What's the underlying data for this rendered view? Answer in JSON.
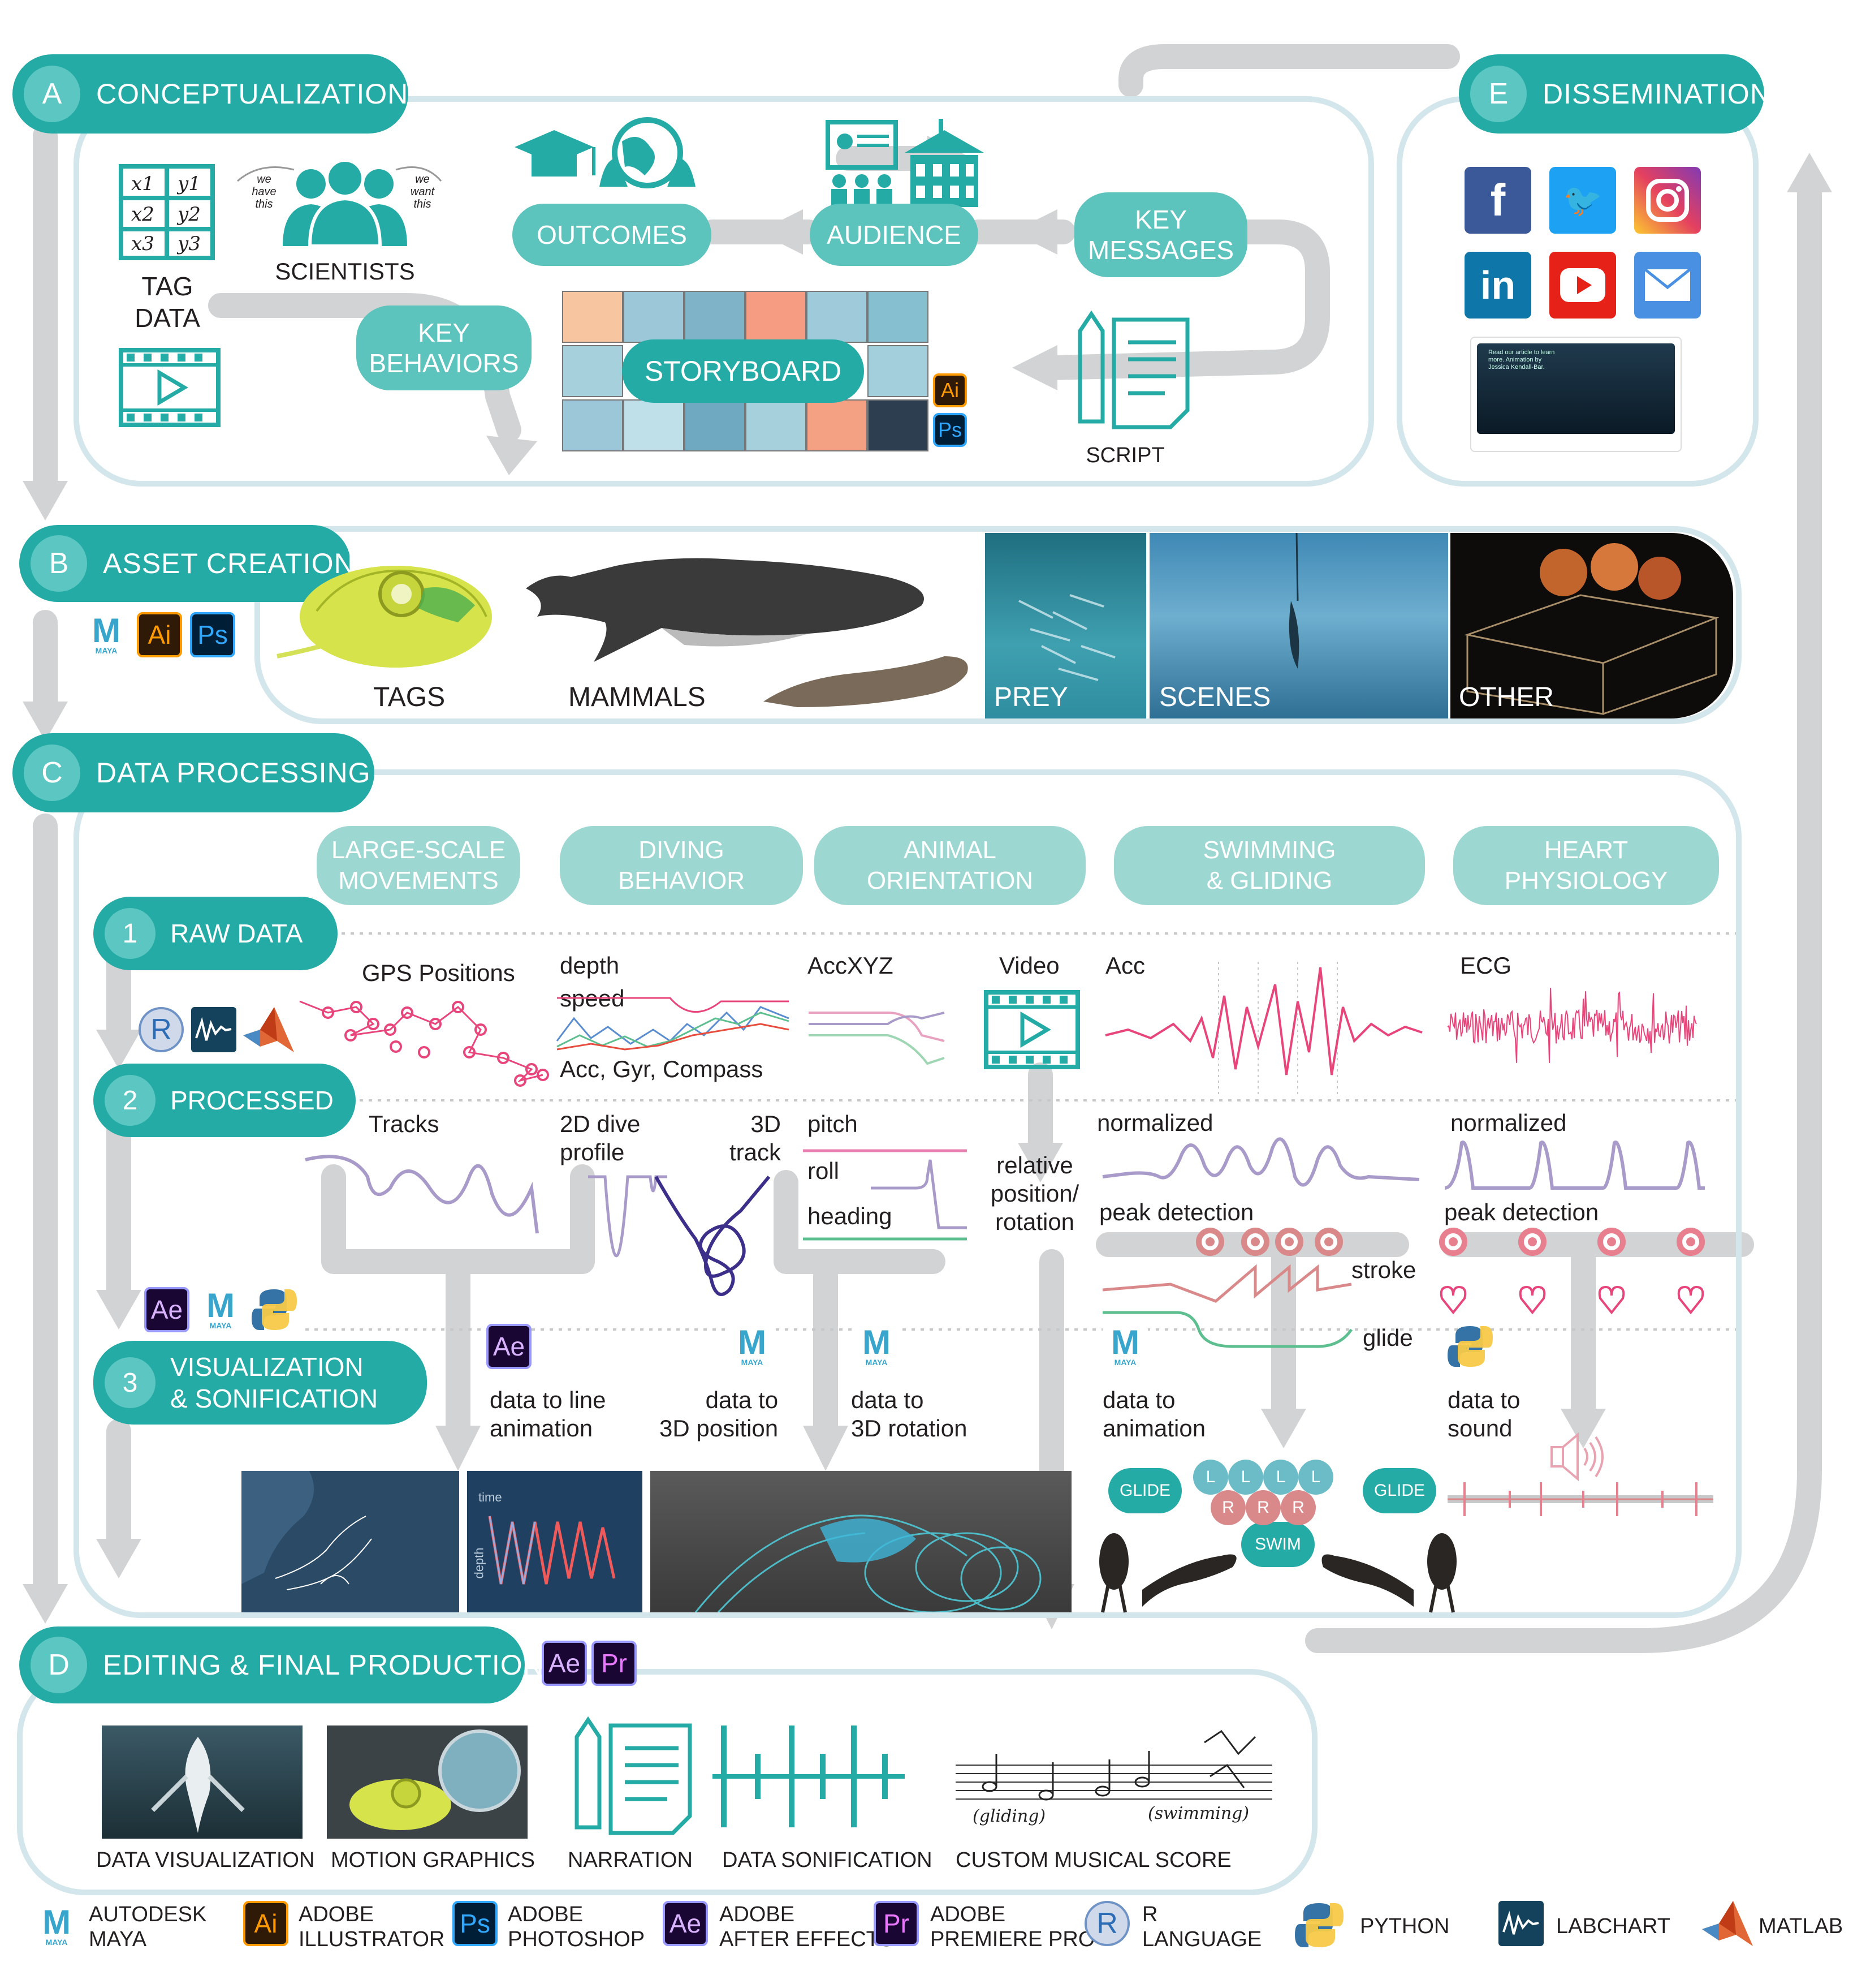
{
  "sections": {
    "a": {
      "letter": "A",
      "title": "CONCEPTUALIZATION"
    },
    "b": {
      "letter": "B",
      "title": "ASSET CREATION"
    },
    "c": {
      "letter": "C",
      "title": "DATA PROCESSING"
    },
    "d": {
      "letter": "D",
      "title": "EDITING & FINAL PRODUCTION"
    },
    "e": {
      "letter": "E",
      "title": "DISSEMINATION"
    }
  },
  "concept": {
    "tag_data": "TAG\nDATA",
    "scientists": "SCIENTISTS",
    "we_have_this": "we\nhave\nthis",
    "we_want_this": "we\nwant\nthis",
    "outcomes": "OUTCOMES",
    "audience": "AUDIENCE",
    "key_messages": "KEY\nMESSAGES",
    "key_behaviors": "KEY\nBEHAVIORS",
    "storyboard": "STORYBOARD",
    "script": "SCRIPT",
    "matrix": [
      "x1",
      "y1",
      "x2",
      "y2",
      "x3",
      "y3"
    ]
  },
  "assets": {
    "tags": "TAGS",
    "mammals": "MAMMALS",
    "prey": "PREY",
    "scenes": "SCENES",
    "other": "OTHER"
  },
  "processing": {
    "categories": [
      "LARGE-SCALE\nMOVEMENTS",
      "DIVING\nBEHAVIOR",
      "ANIMAL\nORIENTATION",
      "SWIMMING\n& GLIDING",
      "HEART\nPHYSIOLOGY"
    ],
    "steps": [
      {
        "num": "1",
        "label": "RAW DATA"
      },
      {
        "num": "2",
        "label": "PROCESSED"
      },
      {
        "num": "3",
        "label": "VISUALIZATION\n& SONIFICATION"
      }
    ],
    "raw_labels": {
      "gps": "GPS Positions",
      "depth": "depth",
      "speed": "speed",
      "acc_gyr": "Acc, Gyr, Compass",
      "accxyz": "AccXYZ",
      "video": "Video",
      "acc": "Acc",
      "ecg": "ECG"
    },
    "processed_labels": {
      "tracks": "Tracks",
      "dive_profile": "2D dive\nprofile",
      "track3d": "3D\ntrack",
      "pitch": "pitch",
      "roll": "roll",
      "heading": "heading",
      "relative": "relative\nposition/\nrotation",
      "normalized1": "normalized",
      "peak1": "peak detection",
      "normalized2": "normalized",
      "peak2": "peak detection",
      "stroke": "stroke",
      "glide": "glide"
    },
    "vis_labels": {
      "line_anim": "data to line\nanimation",
      "pos3d": "data to\n3D position",
      "rot3d": "data to\n3D rotation",
      "anim": "data to\nanimation",
      "sound": "data to\nsound"
    },
    "vis_thumb": {
      "time": "time",
      "depth": "depth"
    },
    "swim": {
      "glide": "GLIDE",
      "glide2": "GLIDE",
      "swim": "SWIM",
      "l": "L",
      "r": "R"
    }
  },
  "editing": {
    "items": [
      "DATA VISUALIZATION",
      "MOTION GRAPHICS",
      "NARRATION",
      "DATA SONIFICATION",
      "CUSTOM MUSICAL SCORE"
    ],
    "score_words": [
      "(gliding)",
      "(swimming)"
    ]
  },
  "dissemination": {
    "social": [
      "f",
      "t",
      "ig",
      "in",
      "yt",
      "mail"
    ],
    "post_text": "Read our article to learn more. Animation by Jessica Kendall-Bar."
  },
  "software": {
    "ai": "Ai",
    "ps": "Ps",
    "ae": "Ae",
    "pr": "Pr",
    "m": "M",
    "maya_small": "MAYA",
    "r": "R"
  },
  "legend": [
    {
      "abbr": "M",
      "name": "AUTODESK\nMAYA"
    },
    {
      "abbr": "Ai",
      "name": "ADOBE\nILLUSTRATOR"
    },
    {
      "abbr": "Ps",
      "name": "ADOBE\nPHOTOSHOP"
    },
    {
      "abbr": "Ae",
      "name": "ADOBE\nAFTER EFFECTS"
    },
    {
      "abbr": "Pr",
      "name": "ADOBE\nPREMIERE PRO"
    },
    {
      "abbr": "R",
      "name": "R\nLANGUAGE"
    },
    {
      "abbr": "",
      "name": "PYTHON"
    },
    {
      "abbr": "",
      "name": "LABCHART"
    },
    {
      "abbr": "",
      "name": "MATLAB"
    }
  ],
  "colors": {
    "teal": "#25aba5",
    "teal_light": "#9dd7d1",
    "panel_border": "#d3e6ec",
    "flow_gray": "#d1d3d4",
    "pink": "#e8457a",
    "lavender": "#a99bc9",
    "dark_purple": "#3b2f8a",
    "green": "#5dbf8f",
    "salmon": "#d98989"
  }
}
